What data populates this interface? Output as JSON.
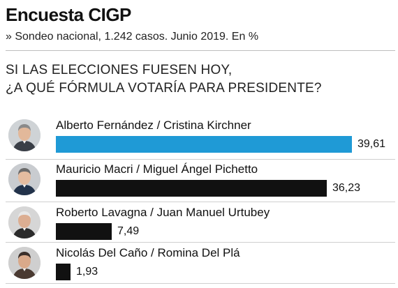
{
  "header": {
    "title": "Encuesta CIGP",
    "subtitle": "» Sondeo nacional, 1.242 casos. Junio 2019. En %"
  },
  "question": {
    "line1": "SI LAS ELECCIONES FUESEN HOY,",
    "line2": "¿A QUÉ FÓRMULA VOTARÍA PARA PRESIDENTE?"
  },
  "colors": {
    "highlight": "#1f9ad6",
    "default": "#111111"
  },
  "chart_data": {
    "type": "bar",
    "orientation": "horizontal",
    "title": "Encuesta CIGP",
    "subtitle": "» Sondeo nacional, 1.242 casos. Junio 2019. En %",
    "categories": [
      "Alberto Fernández / Cristina Kirchner",
      "Mauricio Macri / Miguel Ángel Pichetto",
      "Roberto Lavagna / Juan Manuel Urtubey",
      "Nicolás Del Caño / Romina Del Plá"
    ],
    "values": [
      39.61,
      36.23,
      7.49,
      1.93
    ],
    "value_labels": [
      "39,61",
      "36,23",
      "7,49",
      "1,93"
    ],
    "bar_colors": [
      "#1f9ad6",
      "#111111",
      "#111111",
      "#111111"
    ],
    "avatars": [
      "portrait-photo",
      "portrait-photo",
      "portrait-photo",
      "portrait-photo"
    ],
    "xlim": [
      0,
      40
    ],
    "grid": false,
    "legend": "none"
  }
}
